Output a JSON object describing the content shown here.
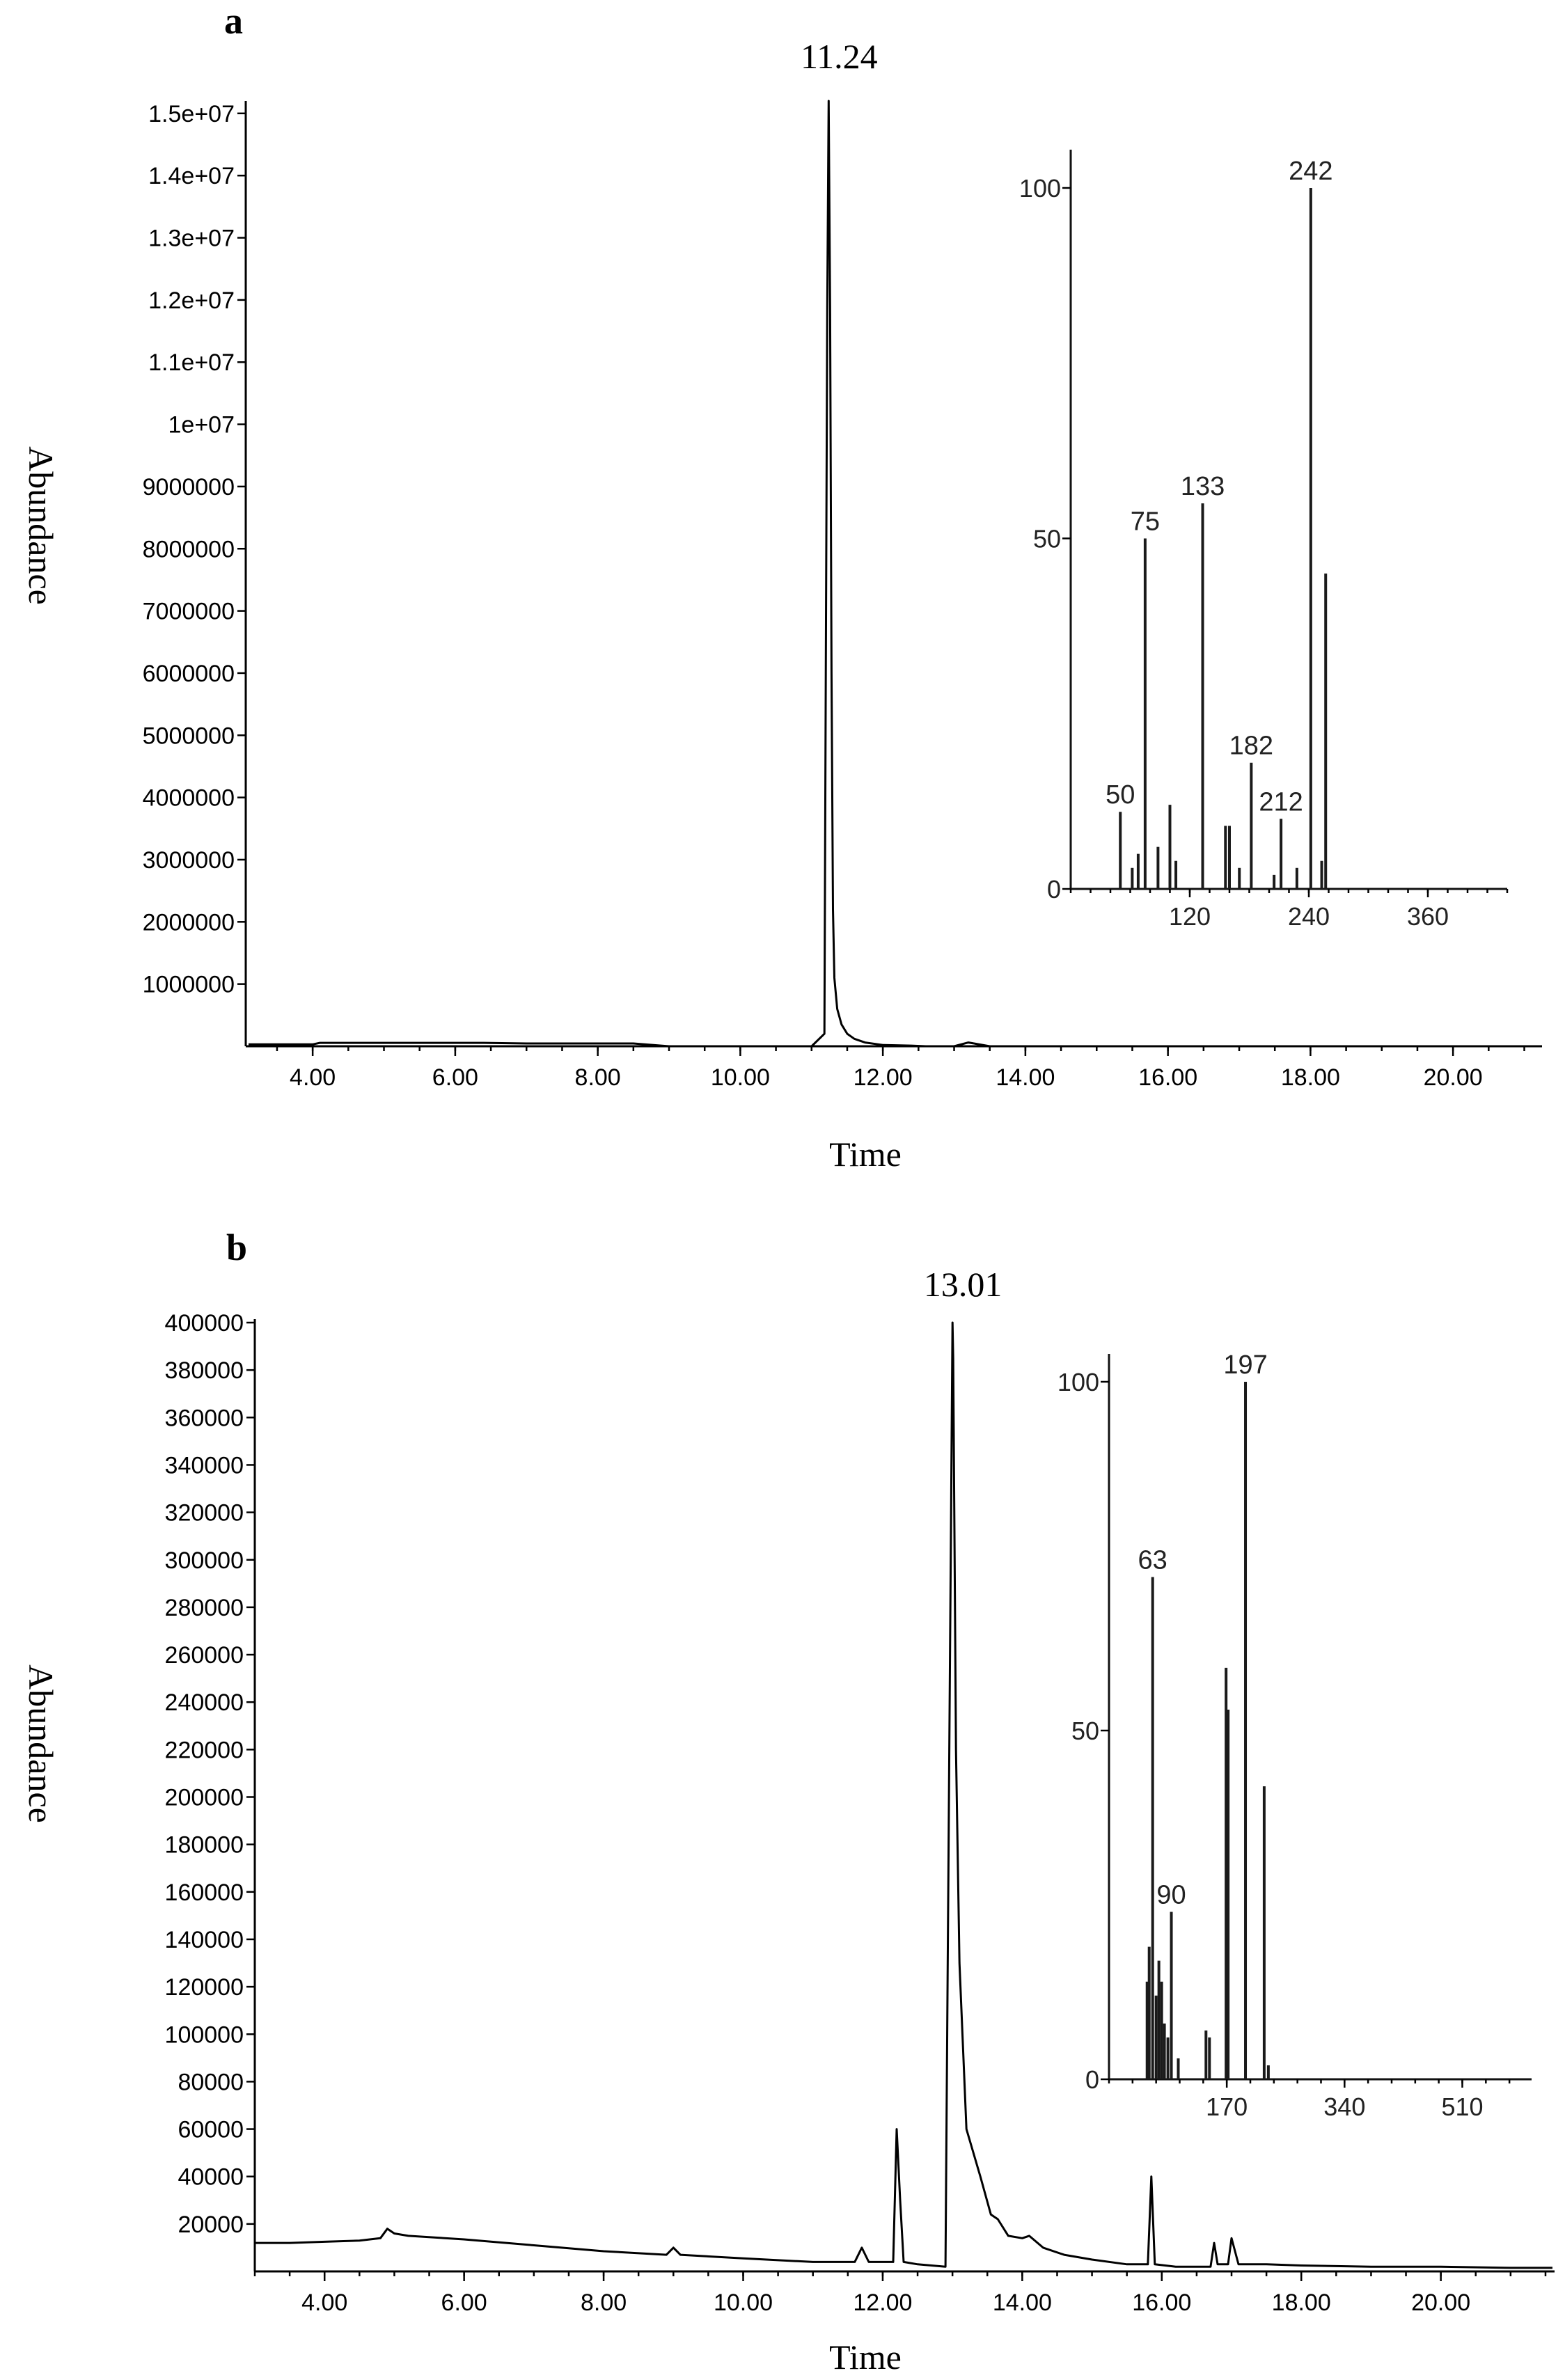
{
  "chart_data": [
    {
      "panel": "a",
      "type": "line",
      "peak_label": "11.24",
      "xlabel": "Time",
      "ylabel": "Abundance",
      "xlim": [
        3.1,
        21.2
      ],
      "ylim": [
        0,
        15200000
      ],
      "x_ticks": [
        "4.00",
        "6.00",
        "8.00",
        "10.00",
        "12.00",
        "14.00",
        "16.00",
        "18.00",
        "20.00"
      ],
      "x_tick_values": [
        4,
        6,
        8,
        10,
        12,
        14,
        16,
        18,
        20
      ],
      "y_ticks": [
        "1000000",
        "2000000",
        "3000000",
        "4000000",
        "5000000",
        "6000000",
        "7000000",
        "8000000",
        "9000000",
        "1e+07",
        "1.1e+07",
        "1.2e+07",
        "1.3e+07",
        "1.4e+07",
        "1.5e+07"
      ],
      "y_tick_values": [
        1000000,
        2000000,
        3000000,
        4000000,
        5000000,
        6000000,
        7000000,
        8000000,
        9000000,
        10000000,
        11000000,
        12000000,
        13000000,
        14000000,
        15000000
      ],
      "series": [
        {
          "x": [
            3.1,
            4.0,
            4.1,
            5.0,
            6.0,
            6.4,
            7.0,
            8.0,
            8.5,
            9.0,
            10.0,
            11.0,
            11.18,
            11.2,
            11.22,
            11.24,
            11.26,
            11.28,
            11.3,
            11.32,
            11.36,
            11.42,
            11.5,
            11.6,
            11.75,
            12.0,
            12.4,
            12.6,
            13.0,
            13.2,
            13.3,
            13.5,
            14.0,
            16.0,
            18.0,
            20.0,
            21.2
          ],
          "y": [
            30000,
            30000,
            55000,
            55000,
            55000,
            55000,
            45000,
            45000,
            45000,
            0,
            0,
            0,
            200000,
            6000000,
            11900000,
            15200000,
            11800000,
            6000000,
            2200000,
            1100000,
            600000,
            350000,
            200000,
            120000,
            60000,
            20000,
            10000,
            0,
            0,
            60000,
            40000,
            0,
            0,
            0,
            0,
            0,
            0
          ]
        }
      ],
      "inset": {
        "type": "bar",
        "xlim": [
          0,
          440
        ],
        "ylim": [
          0,
          100
        ],
        "x_ticks": [
          "120",
          "240",
          "360"
        ],
        "x_tick_values": [
          120,
          240,
          360
        ],
        "y_ticks": [
          "0",
          "50",
          "100"
        ],
        "y_tick_values": [
          0,
          50,
          100
        ],
        "peaks": [
          {
            "mz": 50,
            "rel": 11,
            "label": "50"
          },
          {
            "mz": 75,
            "rel": 50,
            "label": "75"
          },
          {
            "mz": 133,
            "rel": 55,
            "label": "133"
          },
          {
            "mz": 182,
            "rel": 18,
            "label": "182"
          },
          {
            "mz": 212,
            "rel": 10,
            "label": "212"
          },
          {
            "mz": 242,
            "rel": 100,
            "label": "242"
          },
          {
            "mz": 257,
            "rel": 45,
            "label": ""
          },
          {
            "mz": 62,
            "rel": 3,
            "label": ""
          },
          {
            "mz": 68,
            "rel": 5,
            "label": ""
          },
          {
            "mz": 88,
            "rel": 6,
            "label": ""
          },
          {
            "mz": 100,
            "rel": 12,
            "label": ""
          },
          {
            "mz": 106,
            "rel": 4,
            "label": ""
          },
          {
            "mz": 156,
            "rel": 9,
            "label": ""
          },
          {
            "mz": 160,
            "rel": 9,
            "label": ""
          },
          {
            "mz": 170,
            "rel": 3,
            "label": ""
          },
          {
            "mz": 205,
            "rel": 2,
            "label": ""
          },
          {
            "mz": 228,
            "rel": 3,
            "label": ""
          },
          {
            "mz": 253,
            "rel": 4,
            "label": ""
          }
        ]
      }
    },
    {
      "panel": "b",
      "type": "line",
      "peak_label": "13.01",
      "xlabel": "Time",
      "ylabel": "Abundance",
      "xlim": [
        3.0,
        21.6
      ],
      "ylim": [
        0,
        400000
      ],
      "x_ticks": [
        "4.00",
        "6.00",
        "8.00",
        "10.00",
        "12.00",
        "14.00",
        "16.00",
        "18.00",
        "20.00"
      ],
      "x_tick_values": [
        4,
        6,
        8,
        10,
        12,
        14,
        16,
        18,
        20
      ],
      "y_ticks": [
        "20000",
        "40000",
        "60000",
        "80000",
        "100000",
        "120000",
        "140000",
        "160000",
        "180000",
        "200000",
        "220000",
        "240000",
        "260000",
        "280000",
        "300000",
        "320000",
        "340000",
        "360000",
        "380000",
        "400000"
      ],
      "y_tick_values": [
        20000,
        40000,
        60000,
        80000,
        100000,
        120000,
        140000,
        160000,
        180000,
        200000,
        220000,
        240000,
        260000,
        280000,
        300000,
        320000,
        340000,
        360000,
        380000,
        400000
      ],
      "series": [
        {
          "x": [
            3.0,
            3.5,
            4.0,
            4.5,
            4.8,
            4.9,
            5.0,
            5.2,
            6.0,
            7.0,
            8.0,
            8.9,
            9.0,
            9.1,
            10.0,
            11.0,
            11.6,
            11.7,
            11.8,
            12.0,
            12.15,
            12.2,
            12.25,
            12.3,
            12.5,
            12.9,
            12.95,
            13.0,
            13.01,
            13.05,
            13.1,
            13.2,
            13.4,
            13.55,
            13.65,
            13.8,
            14.0,
            14.1,
            14.3,
            14.6,
            15.0,
            15.5,
            15.8,
            15.85,
            15.9,
            16.2,
            16.7,
            16.75,
            16.8,
            16.95,
            17.0,
            17.1,
            17.5,
            18.0,
            19.0,
            20.0,
            21.0,
            21.6
          ],
          "y": [
            12000,
            12000,
            12500,
            13000,
            14000,
            18000,
            16000,
            15000,
            13500,
            11000,
            8500,
            7000,
            10000,
            7000,
            5500,
            4000,
            4000,
            10000,
            4000,
            4000,
            4000,
            60000,
            30000,
            4000,
            3000,
            2000,
            200000,
            400000,
            385000,
            220000,
            130000,
            60000,
            40000,
            24000,
            22000,
            15000,
            14000,
            15000,
            10000,
            7000,
            5000,
            3000,
            3000,
            40000,
            3000,
            2000,
            2000,
            12000,
            3000,
            3000,
            14000,
            3000,
            3000,
            2500,
            2000,
            2000,
            1500,
            1500
          ]
        }
      ],
      "inset": {
        "type": "bar",
        "xlim": [
          0,
          610
        ],
        "ylim": [
          0,
          100
        ],
        "x_ticks": [
          "170",
          "340",
          "510"
        ],
        "x_tick_values": [
          170,
          340,
          510
        ],
        "y_ticks": [
          "0",
          "50",
          "100"
        ],
        "y_tick_values": [
          0,
          50,
          100
        ],
        "peaks": [
          {
            "mz": 63,
            "rel": 72,
            "label": "63"
          },
          {
            "mz": 90,
            "rel": 24,
            "label": "90"
          },
          {
            "mz": 197,
            "rel": 100,
            "label": "197"
          },
          {
            "mz": 55,
            "rel": 14,
            "label": ""
          },
          {
            "mz": 58,
            "rel": 19,
            "label": ""
          },
          {
            "mz": 68,
            "rel": 12,
            "label": ""
          },
          {
            "mz": 72,
            "rel": 17,
            "label": ""
          },
          {
            "mz": 76,
            "rel": 14,
            "label": ""
          },
          {
            "mz": 80,
            "rel": 8,
            "label": ""
          },
          {
            "mz": 85,
            "rel": 6,
            "label": ""
          },
          {
            "mz": 100,
            "rel": 3,
            "label": ""
          },
          {
            "mz": 140,
            "rel": 7,
            "label": ""
          },
          {
            "mz": 145,
            "rel": 6,
            "label": ""
          },
          {
            "mz": 169,
            "rel": 59,
            "label": ""
          },
          {
            "mz": 172,
            "rel": 53,
            "label": ""
          },
          {
            "mz": 224,
            "rel": 42,
            "label": ""
          },
          {
            "mz": 230,
            "rel": 2,
            "label": ""
          }
        ]
      }
    }
  ]
}
